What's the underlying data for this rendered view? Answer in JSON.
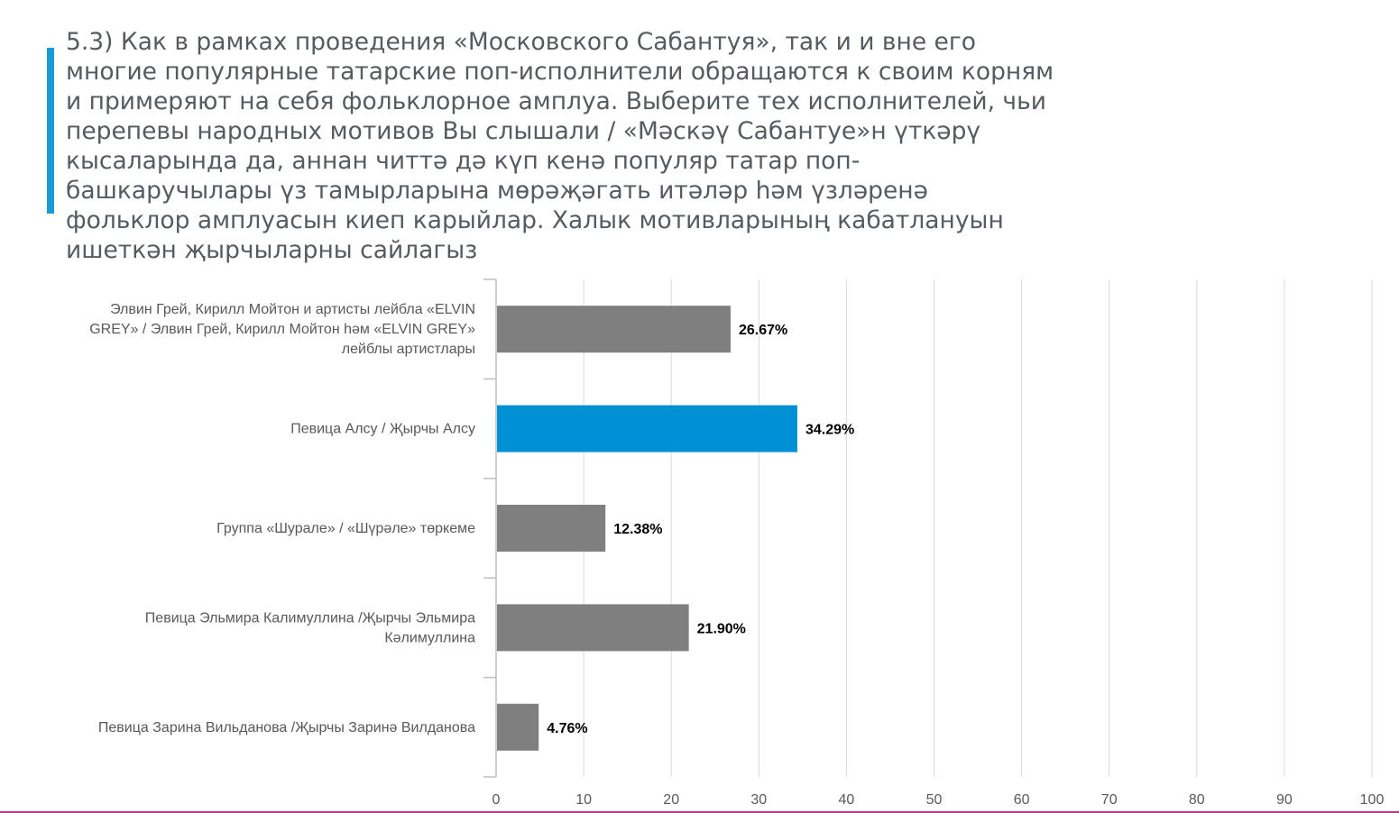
{
  "question": {
    "text": "5.3) Как в рамках проведения «Московского Сабантуя», так и и вне его многие популярные татарские поп-исполнители обращаются к своим корням и примеряют на себя фольклорное амплуа. Выберите тех исполнителей, чьи перепевы народных мотивов Вы слышали / «Мәскәү Сабантуе»н үткәрү кысаларында да, аннан читтә дә күп кенә популяр татар поп-башкаручылары үз тамырларына мөрәҗәгать итәләр һәм үзләренә фольклор амплуасын киеп карыйлар. Халык мотивларының кабатлануын ишеткән җырчыларны сайлагыз"
  },
  "chart_data": {
    "type": "bar",
    "orientation": "horizontal",
    "title": "",
    "xlabel": "",
    "ylabel": "",
    "xlim": [
      0,
      100
    ],
    "x_ticks": [
      "0",
      "10",
      "20",
      "30",
      "40",
      "50",
      "60",
      "70",
      "80",
      "90",
      "100"
    ],
    "grid": true,
    "categories": [
      [
        "Элвин Грей, Кирилл Мойтон и артисты лейбла «ELVIN",
        "GREY» / Элвин Грей, Кирилл Мойтон һәм «ELVIN GREY»",
        "лейблы артистлары"
      ],
      [
        "Певица Алсу /  Җырчы Алсу"
      ],
      [
        "Группа «Шурале» / «Шүрәле» төркеме"
      ],
      [
        "Певица Эльмира Калимуллина /Җырчы Эльмира",
        "Кәлимуллина"
      ],
      [
        "Певица Зарина Вильданова /Җырчы Заринә Вилданова"
      ]
    ],
    "values": [
      26.67,
      34.29,
      12.38,
      21.9,
      4.76
    ],
    "value_labels": [
      "26.67%",
      "34.29%",
      "12.38%",
      "21.90%",
      "4.76%"
    ],
    "highlight_index": 1,
    "colors": {
      "default": "#7f7f7f",
      "highlight": "#0090d4"
    }
  }
}
